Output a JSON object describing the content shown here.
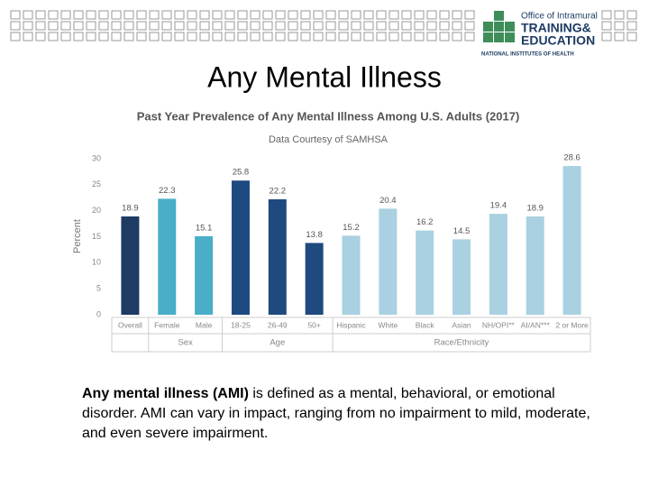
{
  "slide_title": "Any Mental Illness",
  "logo": {
    "line1": "Office of Intramural",
    "line2": "TRAINING&",
    "line3": "EDUCATION",
    "line4": "NATIONAL INSTITUTES OF HEALTH"
  },
  "chart_data": {
    "type": "bar",
    "title": "Past Year Prevalence of Any Mental Illness Among U.S. Adults (2017)",
    "subtitle": "Data Courtesy of SAMHSA",
    "y_label": "Percent",
    "categories": [
      "Overall",
      "Female",
      "Male",
      "18-25",
      "26-49",
      "50+",
      "Hispanic",
      "White",
      "Black",
      "Asian",
      "NH/OPI**",
      "AI/AN***",
      "2 or More"
    ],
    "groups": [
      null,
      "Sex",
      "Sex",
      "Age",
      "Age",
      "Age",
      "Race/Ethnicity",
      "Race/Ethnicity",
      "Race/Ethnicity",
      "Race/Ethnicity",
      "Race/Ethnicity",
      "Race/Ethnicity",
      "Race/Ethnicity"
    ],
    "values": [
      18.9,
      22.3,
      15.1,
      25.8,
      22.2,
      13.8,
      15.2,
      20.4,
      16.2,
      14.5,
      19.4,
      18.9,
      28.6
    ],
    "colors": [
      "#1d3b63",
      "#4aaec8",
      "#4aaec8",
      "#1f4a80",
      "#1f4a80",
      "#1f4a80",
      "#a9d1e1",
      "#a9d1e1",
      "#a9d1e1",
      "#a9d1e1",
      "#a9d1e1",
      "#a9d1e1",
      "#a9d1e1"
    ],
    "ylim": [
      0,
      30
    ],
    "yticks": [
      0,
      5,
      10,
      15,
      20,
      25,
      30
    ],
    "grid": false
  },
  "body": {
    "bold": "Any mental illness (AMI)",
    "text": " is defined as a mental, behavioral, or emotional disorder. AMI can vary in impact, ranging from no impairment to mild, moderate, and even severe impairment."
  }
}
